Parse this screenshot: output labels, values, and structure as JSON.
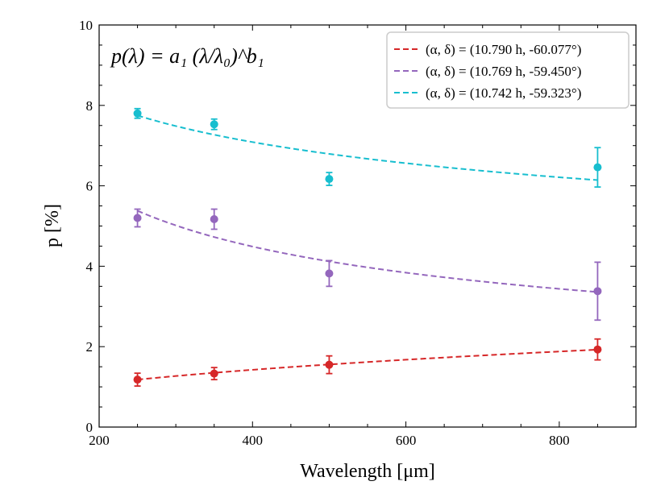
{
  "chart_data": {
    "type": "scatter",
    "title": "",
    "formula": "p(λ) = a₁ (λ/λ₀)^b₁",
    "xlabel": "Wavelength [μm]",
    "ylabel": "p [%]",
    "xlim": [
      200,
      900
    ],
    "ylim": [
      0,
      10
    ],
    "xticks": [
      200,
      400,
      600,
      800
    ],
    "yticks": [
      0,
      2,
      4,
      6,
      8,
      10
    ],
    "x": [
      250,
      350,
      500,
      850
    ],
    "legend_position": "top-right",
    "series": [
      {
        "name": "(α, δ) = (10.790 h, -60.077°)",
        "color": "#d62728",
        "values": [
          1.18,
          1.33,
          1.55,
          1.93
        ],
        "errors": [
          0.16,
          0.15,
          0.22,
          0.26
        ],
        "fit": {
          "a": 1.18,
          "ref": 250,
          "b": 0.4
        }
      },
      {
        "name": "(α, δ) = (10.769 h, -59.450°)",
        "color": "#9467bd",
        "values": [
          5.2,
          5.17,
          3.82,
          3.38
        ],
        "errors": [
          0.22,
          0.25,
          0.32,
          0.72
        ],
        "fit": {
          "a": 5.38,
          "ref": 250,
          "b": -0.385
        }
      },
      {
        "name": "(α, δ) = (10.742 h, -59.323°)",
        "color": "#17becf",
        "values": [
          7.8,
          7.53,
          6.17,
          6.46
        ],
        "errors": [
          0.12,
          0.13,
          0.16,
          0.49
        ],
        "fit": {
          "a": 7.75,
          "ref": 250,
          "b": -0.19
        }
      }
    ]
  }
}
